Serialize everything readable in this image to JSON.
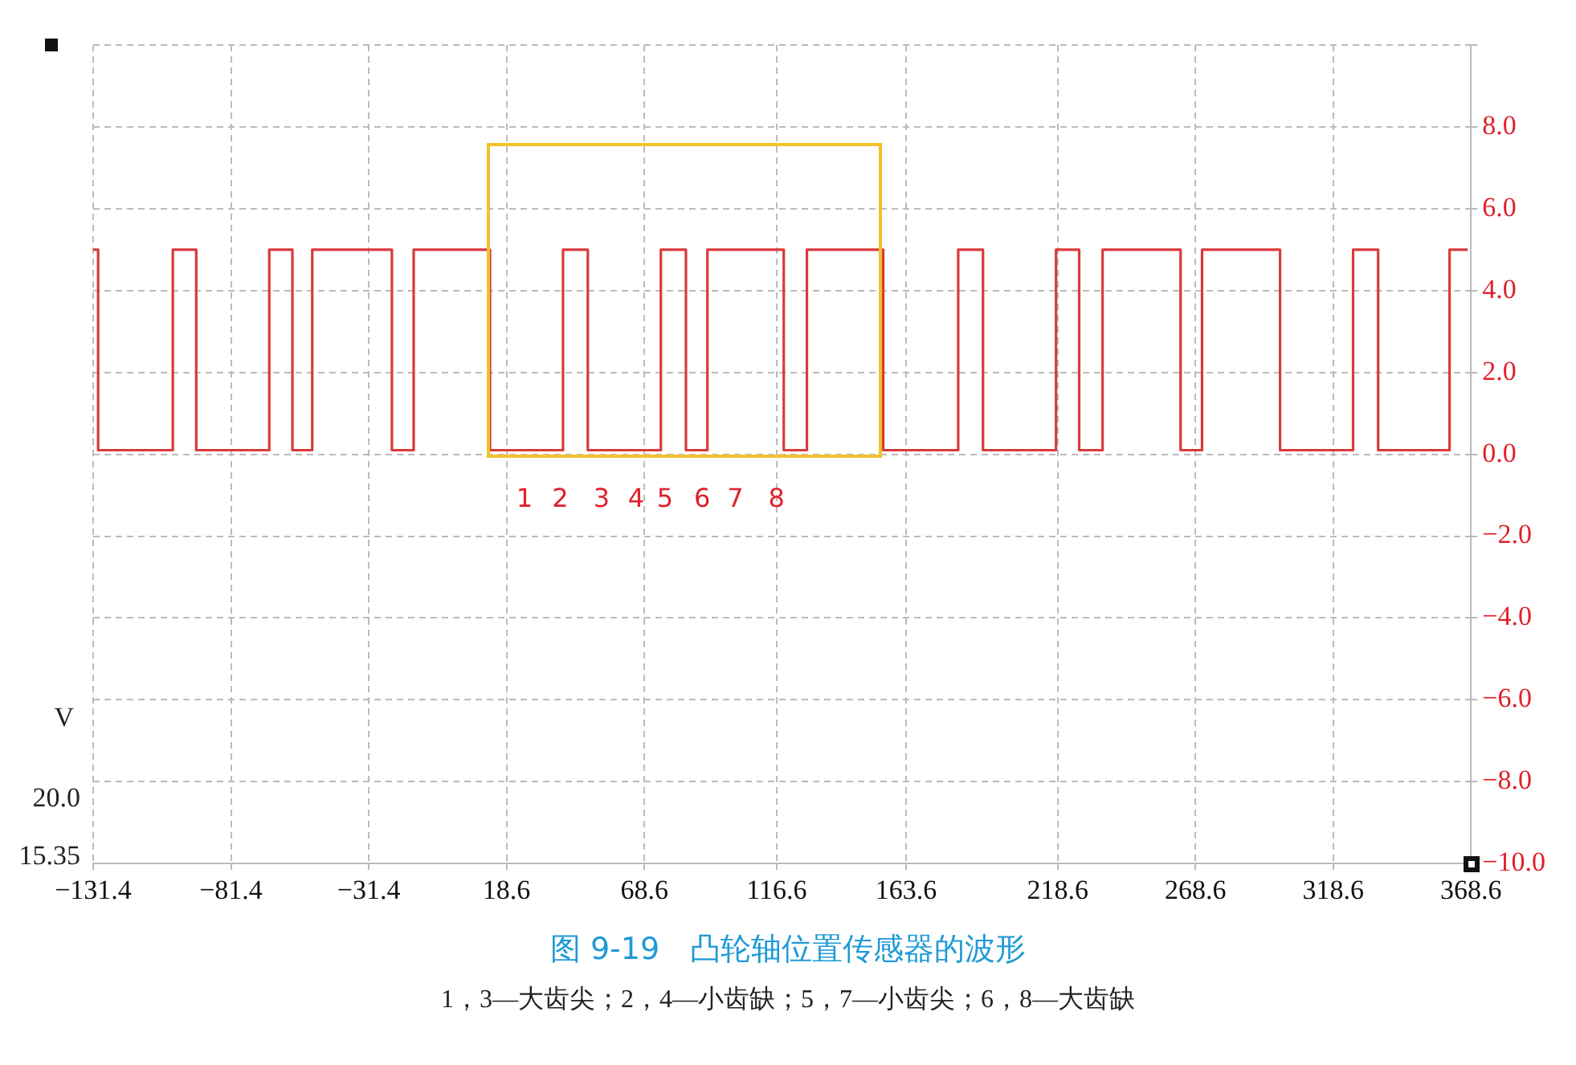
{
  "chart_data": {
    "type": "step",
    "title": "图 9-19　凸轮轴位置传感器的波形",
    "subtitle": "1，3—大齿尖；2，4—小齿缺；5，7—小齿尖；6，8—大齿缺",
    "x": [
      -131.4,
      -129.6,
      -102.5,
      -94.0,
      -67.5,
      -59.1,
      -51.9,
      -23.0,
      -15.1,
      12.6,
      39.1,
      48.1,
      74.6,
      83.7,
      91.5,
      119.2,
      127.6,
      155.3,
      182.5,
      191.5,
      218.0,
      226.4,
      234.9,
      263.2,
      271.0,
      299.3,
      325.8,
      334.9,
      360.8,
      367.4
    ],
    "series": [
      {
        "color": "#d93a3a",
        "values": [
          5.0,
          0.1,
          5.0,
          0.1,
          5.0,
          0.1,
          5.0,
          0.1,
          5.0,
          0.1,
          5.0,
          0.1,
          5.0,
          0.1,
          5.0,
          0.1,
          5.0,
          0.1,
          5.0,
          0.1,
          5.0,
          0.1,
          5.0,
          0.1,
          5.0,
          0.1,
          5.0,
          0.1,
          5.0,
          5.0
        ]
      }
    ],
    "xlim": [
      -131.4,
      368.6
    ],
    "xticks": [
      {
        "value": -131.4,
        "label": "−131.4"
      },
      {
        "value": -81.4,
        "label": "−81.4"
      },
      {
        "value": -31.4,
        "label": "−31.4"
      },
      18.6,
      68.6,
      116.6,
      163.6,
      218.6,
      268.6,
      318.6,
      368.6
    ],
    "ylim": [
      -10,
      10
    ],
    "yticks": [
      {
        "value": -10,
        "label": "−10.0"
      },
      {
        "value": -8,
        "label": "−8.0"
      },
      {
        "value": -6,
        "label": "−6.0"
      },
      {
        "value": -4,
        "label": "−4.0"
      },
      {
        "value": -2,
        "label": "−2.0"
      },
      {
        "value": 0,
        "label": "0.0"
      },
      {
        "value": 2,
        "label": "2.0"
      },
      {
        "value": 4,
        "label": "4.0"
      },
      {
        "value": 6,
        "label": "6.0"
      },
      {
        "value": 8,
        "label": "8.0"
      },
      {
        "value": 10,
        "label": null
      }
    ],
    "grid": true,
    "annotations": [
      "V",
      "20.0",
      "15.35",
      "1",
      "2",
      "3",
      "4",
      "5",
      "6",
      "7",
      "8"
    ]
  }
}
